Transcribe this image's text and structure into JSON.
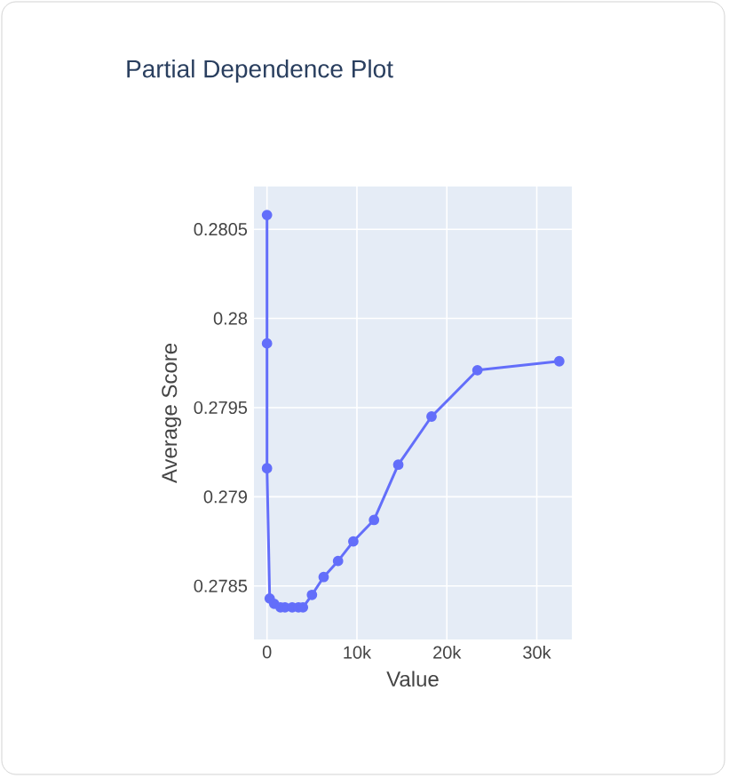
{
  "chart_data": {
    "type": "line",
    "title": "Partial Dependence Plot",
    "xlabel": "Value",
    "ylabel": "Average Score",
    "series": [
      {
        "color": "#636efa",
        "x": [
          0,
          0,
          0,
          300,
          800,
          1500,
          2000,
          2800,
          3500,
          4000,
          5000,
          6300,
          7900,
          9600,
          11900,
          14600,
          18300,
          23400,
          32500
        ],
        "values": [
          0.28058,
          0.27986,
          0.27916,
          0.27843,
          0.2784,
          0.27838,
          0.27838,
          0.27838,
          0.27838,
          0.27838,
          0.27845,
          0.27855,
          0.27864,
          0.27875,
          0.27887,
          0.27918,
          0.27945,
          0.27971,
          0.27976
        ]
      }
    ],
    "xlim": [
      -1450,
      33900
    ],
    "ylim": [
      0.2782,
      0.28074
    ],
    "xticks": [
      0,
      {
        "value": 10000,
        "label": "10k"
      },
      {
        "value": 20000,
        "label": "20k"
      },
      {
        "value": 30000,
        "label": "30k"
      }
    ],
    "yticks": [
      0.2785,
      0.279,
      0.2795,
      0.28,
      0.2805
    ],
    "grid": true,
    "marker": "circle",
    "line_style": "solid"
  }
}
